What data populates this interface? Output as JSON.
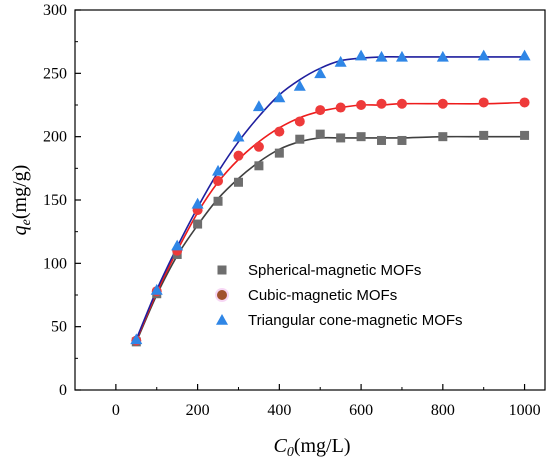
{
  "chart_data": {
    "type": "scatter",
    "xlabel_main": "C",
    "xlabel_sub": "0",
    "xlabel_unit": "(mg/L)",
    "ylabel_main": "q",
    "ylabel_sub": "e",
    "ylabel_unit": "(mg/g)",
    "xlim": [
      -100,
      1050
    ],
    "ylim": [
      0,
      300
    ],
    "xticks": [
      0,
      200,
      400,
      600,
      800,
      1000
    ],
    "yticks": [
      0,
      50,
      100,
      150,
      200,
      250,
      300
    ],
    "legend_position": "center-right",
    "series": [
      {
        "name": "Spherical-magnetic MOFs",
        "marker": "square",
        "marker_color": "#6e6e6e",
        "line_color": "#404040",
        "x": [
          50,
          100,
          150,
          200,
          250,
          300,
          350,
          400,
          450,
          500,
          550,
          600,
          650,
          700,
          800,
          900,
          1000
        ],
        "y": [
          38,
          76,
          107,
          131,
          149,
          164,
          177,
          187,
          198,
          202,
          199,
          200,
          197,
          197,
          200,
          201,
          201
        ],
        "fit_x": [
          50,
          100,
          150,
          200,
          250,
          300,
          350,
          400,
          450,
          500,
          550,
          600,
          650,
          700,
          800,
          900,
          1000
        ],
        "fit_y": [
          38,
          75,
          106,
          130,
          151,
          167,
          180,
          190,
          196,
          199,
          199,
          199,
          199,
          199,
          200,
          200,
          200
        ]
      },
      {
        "name": "Cubic-magnetic MOFs",
        "marker": "circle",
        "marker_color": "#ee3a3a",
        "line_color": "#ee1c1c",
        "x": [
          50,
          100,
          150,
          200,
          250,
          300,
          350,
          400,
          450,
          500,
          550,
          600,
          650,
          700,
          800,
          900,
          1000
        ],
        "y": [
          39,
          78,
          110,
          142,
          165,
          185,
          192,
          204,
          212,
          221,
          223,
          225,
          226,
          226,
          226,
          227,
          227
        ],
        "fit_x": [
          50,
          100,
          150,
          200,
          250,
          300,
          350,
          400,
          450,
          500,
          550,
          600,
          650,
          700,
          800,
          900,
          1000
        ],
        "fit_y": [
          39,
          77,
          110,
          140,
          164,
          182,
          196,
          207,
          215,
          220,
          223,
          225,
          225,
          226,
          226,
          226,
          227
        ]
      },
      {
        "name": "Triangular cone-magnetic MOFs",
        "marker": "triangle",
        "marker_color": "#2f86e6",
        "line_color": "#1f1f9e",
        "x": [
          50,
          100,
          150,
          200,
          250,
          300,
          350,
          400,
          450,
          500,
          550,
          600,
          650,
          700,
          800,
          900,
          1000
        ],
        "y": [
          40,
          79,
          114,
          147,
          173,
          200,
          224,
          231,
          240,
          250,
          259,
          264,
          263,
          263,
          263,
          264,
          264
        ],
        "fit_x": [
          50,
          100,
          150,
          200,
          250,
          300,
          350,
          400,
          450,
          500,
          550,
          600,
          650,
          700,
          800,
          900,
          1000
        ],
        "fit_y": [
          40,
          79,
          113,
          144,
          172,
          196,
          216,
          233,
          245,
          254,
          260,
          262,
          263,
          263,
          263,
          263,
          263
        ]
      }
    ]
  }
}
